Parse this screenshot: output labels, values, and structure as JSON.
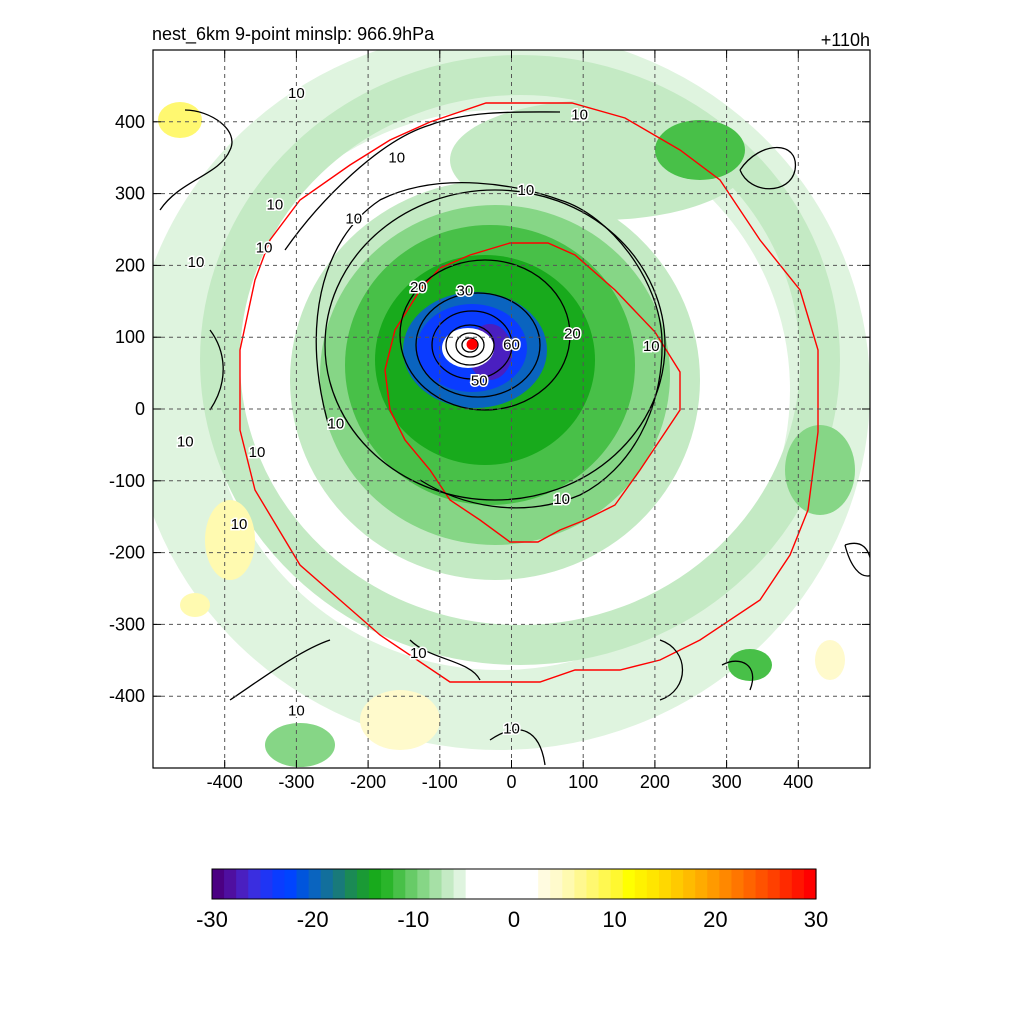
{
  "title_left": "nest_6km  9-point minslp: 966.9hPa",
  "title_right": "+110h",
  "chart_data": {
    "type": "heatmap",
    "xlim": [
      -500,
      500
    ],
    "ylim": [
      -500,
      500
    ],
    "x_ticks": [
      -400,
      -300,
      -200,
      -100,
      0,
      100,
      200,
      300,
      400
    ],
    "y_ticks": [
      400,
      300,
      200,
      100,
      0,
      -100,
      -200,
      -300,
      -400
    ],
    "grid": "dashed",
    "center_marker": {
      "x": -55,
      "y": 90,
      "color": "#ff0000"
    },
    "contour_labels": [
      {
        "text": "10",
        "x": -300,
        "y": 440
      },
      {
        "text": "10",
        "x": -160,
        "y": 350
      },
      {
        "text": "10",
        "x": -330,
        "y": 285
      },
      {
        "text": "10",
        "x": -345,
        "y": 225
      },
      {
        "text": "10",
        "x": -440,
        "y": 205
      },
      {
        "text": "10",
        "x": -220,
        "y": 265
      },
      {
        "text": "10",
        "x": 95,
        "y": 410
      },
      {
        "text": "10",
        "x": 20,
        "y": 305
      },
      {
        "text": "20",
        "x": -130,
        "y": 170
      },
      {
        "text": "30",
        "x": -65,
        "y": 165
      },
      {
        "text": "20",
        "x": 85,
        "y": 105
      },
      {
        "text": "10",
        "x": 195,
        "y": 88
      },
      {
        "text": "60",
        "x": 0,
        "y": 90
      },
      {
        "text": "50",
        "x": -45,
        "y": 40
      },
      {
        "text": "10",
        "x": -245,
        "y": -20
      },
      {
        "text": "10",
        "x": 70,
        "y": -125
      },
      {
        "text": "10",
        "x": -455,
        "y": -45
      },
      {
        "text": "10",
        "x": -355,
        "y": -60
      },
      {
        "text": "10",
        "x": -380,
        "y": -160
      },
      {
        "text": "10",
        "x": -130,
        "y": -340
      },
      {
        "text": "10",
        "x": -300,
        "y": -420
      },
      {
        "text": "10",
        "x": 0,
        "y": -445
      }
    ],
    "colorbar": {
      "ticks": [
        "-30",
        "-20",
        "-10",
        "0",
        "10",
        "20",
        "30"
      ],
      "range": [
        -30,
        30
      ],
      "colors": [
        "#4b0082",
        "#4f0fa0",
        "#4a1fc0",
        "#3a2ee0",
        "#1f35f5",
        "#0a3cff",
        "#0044ff",
        "#0055dd",
        "#0a64bf",
        "#126f9c",
        "#197a7a",
        "#1b8a55",
        "#1a9a35",
        "#18aa1c",
        "#2ab52a",
        "#48c048",
        "#67cb67",
        "#86d686",
        "#a6e0a6",
        "#c4eac4",
        "#dff4df",
        "#ffffff",
        "#ffffff",
        "#ffffff",
        "#ffffff",
        "#ffffff",
        "#ffffff",
        "#fffbe0",
        "#fffacc",
        "#fffab0",
        "#fff890",
        "#fff870",
        "#fff850",
        "#fff830",
        "#ffff00",
        "#fff200",
        "#ffe600",
        "#ffd800",
        "#ffca00",
        "#ffbb00",
        "#ffab00",
        "#ff9a00",
        "#ff8800",
        "#ff7600",
        "#ff6400",
        "#ff5200",
        "#ff4000",
        "#ff2a00",
        "#ff1500",
        "#ff0000"
      ]
    }
  }
}
